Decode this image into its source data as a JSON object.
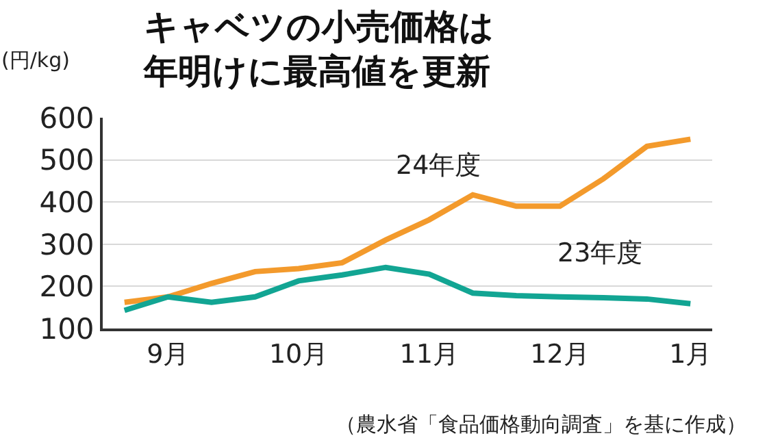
{
  "chart_data": {
    "type": "line",
    "title": "キャベツの小売価格は年明けに最高値を更新",
    "ylabel": "(円/kg)",
    "categories": [
      null,
      "9月",
      null,
      null,
      "10月",
      null,
      null,
      "11月",
      null,
      null,
      "12月",
      null,
      null,
      "1月"
    ],
    "series": [
      {
        "name": "24年度",
        "color": "#f39a2c",
        "values": [
          162,
          175,
          207,
          235,
          242,
          256,
          310,
          358,
          417,
          390,
          390,
          455,
          532,
          549
        ]
      },
      {
        "name": "23年度",
        "color": "#12a593",
        "values": [
          143,
          175,
          162,
          175,
          213,
          227,
          245,
          229,
          184,
          178,
          175,
          173,
          170,
          159
        ]
      }
    ],
    "ylim": [
      100,
      600
    ],
    "yticks": [
      100,
      200,
      300,
      400,
      500,
      600
    ],
    "grid": "y",
    "legend": false,
    "annotations": [
      "（農水省「食品価格動向調査」を基に作成）"
    ]
  }
}
